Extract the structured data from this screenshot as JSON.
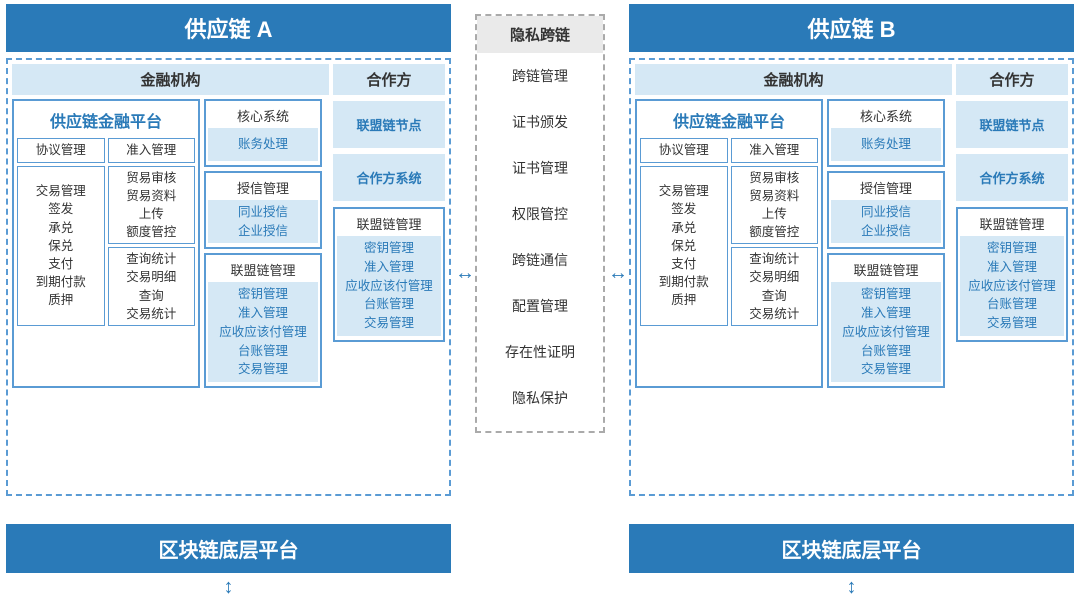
{
  "colors": {
    "brand": "#2a7ab8",
    "pale": "#d5e8f5",
    "border": "#5a9bd4",
    "gray_border": "#aaaaaa",
    "gray_fill": "#eaeaea"
  },
  "chain_a_title": "供应链 A",
  "chain_b_title": "供应链 B",
  "finance_header": "金融机构",
  "partner_header": "合作方",
  "platform_title": "供应链金融平台",
  "grid": {
    "r0c0": "协议管理",
    "r0c1": "准入管理",
    "r1c0_l1": "交易管理",
    "r1c0_l2": "签发",
    "r1c0_l3": "承兑",
    "r1c0_l4": "保兑",
    "r1c0_l5": "支付",
    "r1c0_l6": "到期付款",
    "r1c0_l7": "质押",
    "r1c1_l1": "贸易审核",
    "r1c1_l2": "贸易资料",
    "r1c1_l3": "上传",
    "r1c1_l4": "额度管控",
    "r2c1_l1": "查询统计",
    "r2c1_l2": "交易明细",
    "r2c1_l3": "查询",
    "r2c1_l4": "交易统计"
  },
  "side": {
    "b1_hdr": "核心系统",
    "b1_body": "账务处理",
    "b2_hdr": "授信管理",
    "b2_l1": "同业授信",
    "b2_l2": "企业授信",
    "b3_hdr": "联盟链管理",
    "b3_l1": "密钥管理",
    "b3_l2": "准入管理",
    "b3_l3": "应收应该付管理",
    "b3_l4": "台账管理",
    "b3_l5": "交易管理"
  },
  "partner": {
    "i1": "联盟链节点",
    "i2": "合作方系统",
    "b_hdr": "联盟链管理",
    "b_l1": "密钥管理",
    "b_l2": "准入管理",
    "b_l3": "应收应该付管理",
    "b_l4": "台账管理",
    "b_l5": "交易管理"
  },
  "center": {
    "hdr": "隐私跨链",
    "i1": "跨链管理",
    "i2": "证书颁发",
    "i3": "证书管理",
    "i4": "权限管控",
    "i5": "跨链通信",
    "i6": "配置管理",
    "i7": "存在性证明",
    "i8": "隐私保护"
  },
  "bottom_platform": "区块链底层平台"
}
